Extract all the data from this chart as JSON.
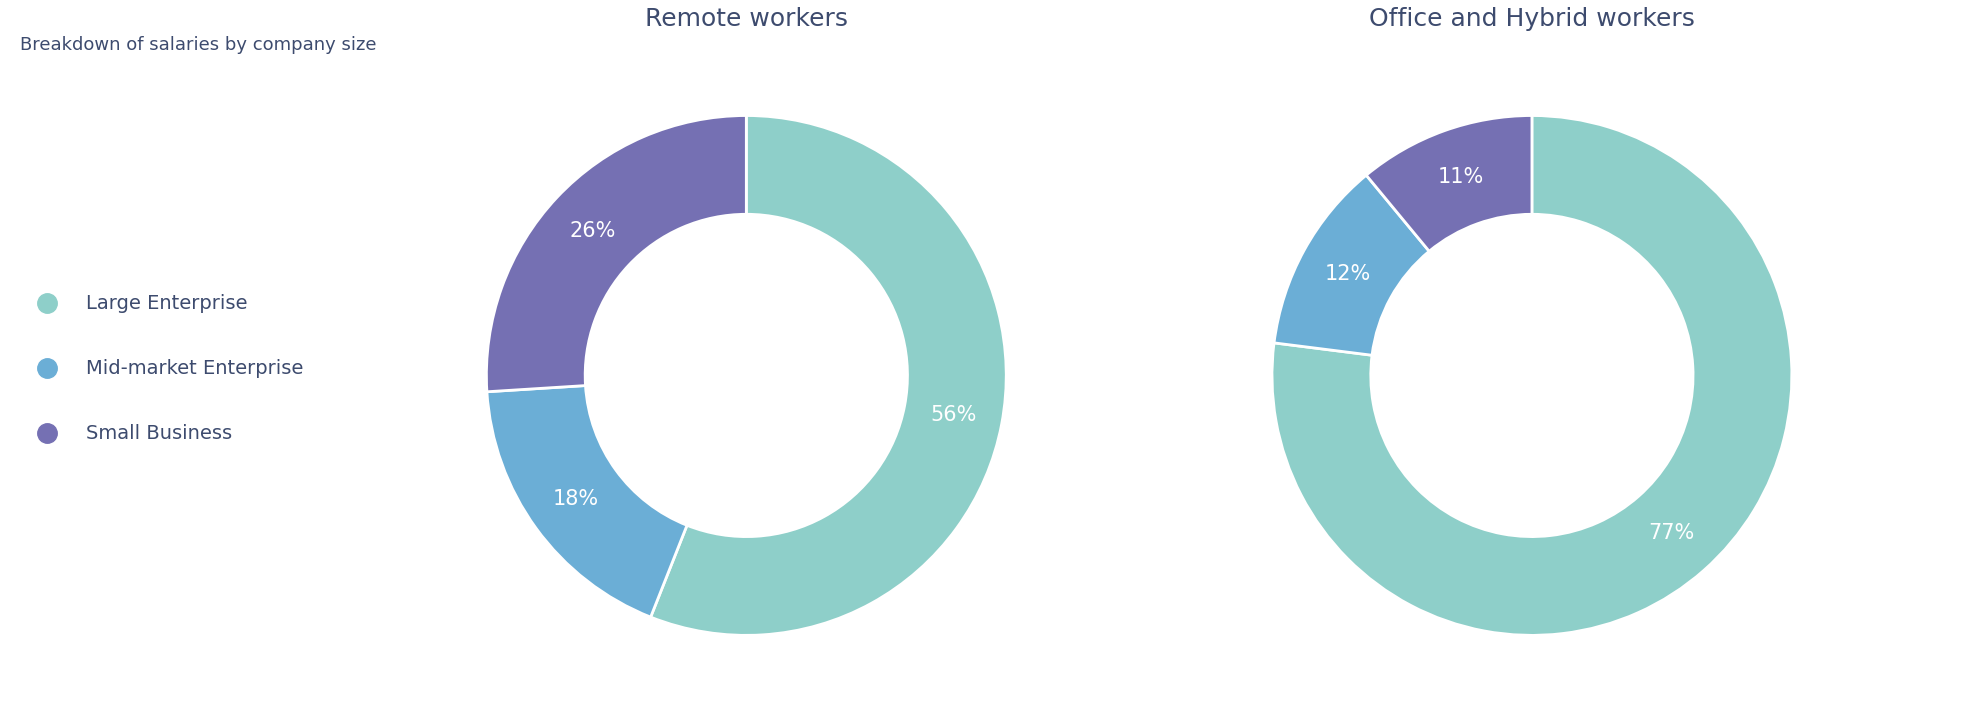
{
  "title_main": "Breakdown of salaries by company size",
  "chart1_title": "Remote workers",
  "chart2_title": "Office and Hybrid workers",
  "legend_labels": [
    "Large Enterprise",
    "Mid-market Enterprise",
    "Small Business"
  ],
  "colors": [
    "#8ecfc9",
    "#6baed6",
    "#7570b3"
  ],
  "remote_values": [
    56,
    18,
    26
  ],
  "office_values": [
    77,
    12,
    11
  ],
  "remote_labels": [
    "56%",
    "18%",
    "26%"
  ],
  "office_labels": [
    "77%",
    "12%",
    "11%"
  ],
  "background_color": "#ffffff",
  "text_color": "#3d4b6e",
  "label_color": "#ffffff",
  "title_fontsize": 13,
  "chart_title_fontsize": 18,
  "legend_fontsize": 14,
  "label_fontsize": 15,
  "donut_width": 0.38
}
